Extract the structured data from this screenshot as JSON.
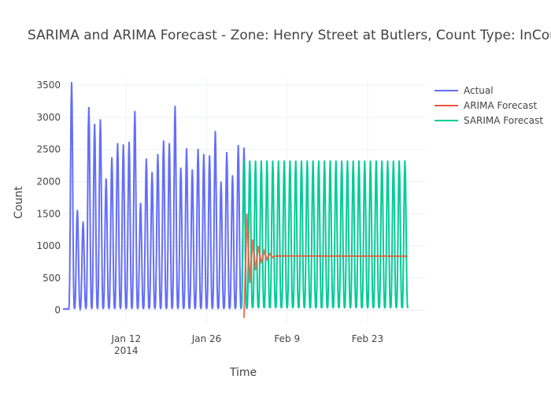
{
  "chart_data": {
    "type": "line",
    "title": "SARIMA and ARIMA Forecast - Zone: Henry Street at Butlers, Count Type: InCount, Pr",
    "xlabel": "Time",
    "ylabel": "Count",
    "xlim": [
      "2014-01-01",
      "2014-03-05"
    ],
    "ylim": [
      -200,
      3600
    ],
    "yticks": [
      0,
      500,
      1000,
      1500,
      2000,
      2500,
      3000,
      3500
    ],
    "xticks": [
      {
        "date": "2014-01-12",
        "label": "Jan 12",
        "sublabel": "2014"
      },
      {
        "date": "2014-01-26",
        "label": "Jan 26",
        "sublabel": ""
      },
      {
        "date": "2014-02-09",
        "label": "Feb 9",
        "sublabel": ""
      },
      {
        "date": "2014-02-23",
        "label": "Feb 23",
        "sublabel": ""
      }
    ],
    "grid": true,
    "legend_position": "top-right",
    "series": [
      {
        "name": "Actual",
        "color": "#636efa",
        "daily_peaks": [
          {
            "date": "2014-01-02",
            "peak": 3550
          },
          {
            "date": "2014-01-03",
            "peak": 1560
          },
          {
            "date": "2014-01-04",
            "peak": 1380
          },
          {
            "date": "2014-01-05",
            "peak": 3160
          },
          {
            "date": "2014-01-06",
            "peak": 2900
          },
          {
            "date": "2014-01-07",
            "peak": 2970
          },
          {
            "date": "2014-01-08",
            "peak": 2050
          },
          {
            "date": "2014-01-09",
            "peak": 2380
          },
          {
            "date": "2014-01-10",
            "peak": 2600
          },
          {
            "date": "2014-01-11",
            "peak": 2580
          },
          {
            "date": "2014-01-12",
            "peak": 2620
          },
          {
            "date": "2014-01-13",
            "peak": 3100
          },
          {
            "date": "2014-01-14",
            "peak": 1670
          },
          {
            "date": "2014-01-15",
            "peak": 2360
          },
          {
            "date": "2014-01-16",
            "peak": 2150
          },
          {
            "date": "2014-01-17",
            "peak": 2430
          },
          {
            "date": "2014-01-18",
            "peak": 2640
          },
          {
            "date": "2014-01-19",
            "peak": 2600
          },
          {
            "date": "2014-01-20",
            "peak": 3180
          },
          {
            "date": "2014-01-21",
            "peak": 2220
          },
          {
            "date": "2014-01-22",
            "peak": 2520
          },
          {
            "date": "2014-01-23",
            "peak": 2190
          },
          {
            "date": "2014-01-24",
            "peak": 2510
          },
          {
            "date": "2014-01-25",
            "peak": 2430
          },
          {
            "date": "2014-01-26",
            "peak": 2410
          },
          {
            "date": "2014-01-27",
            "peak": 2790
          },
          {
            "date": "2014-01-28",
            "peak": 2000
          },
          {
            "date": "2014-01-29",
            "peak": 2460
          },
          {
            "date": "2014-01-30",
            "peak": 2100
          },
          {
            "date": "2014-01-31",
            "peak": 2570
          },
          {
            "date": "2014-02-01",
            "peak": 2530
          }
        ]
      },
      {
        "name": "ARIMA Forecast",
        "color": "#ef553b",
        "points": [
          {
            "date": "2014-02-01T12:00",
            "y": -120
          },
          {
            "date": "2014-02-02",
            "y": 1500
          },
          {
            "date": "2014-02-02T12:00",
            "y": 420
          },
          {
            "date": "2014-02-03",
            "y": 1100
          },
          {
            "date": "2014-02-03T12:00",
            "y": 620
          },
          {
            "date": "2014-02-04",
            "y": 1000
          },
          {
            "date": "2014-02-04T12:00",
            "y": 730
          },
          {
            "date": "2014-02-05",
            "y": 920
          },
          {
            "date": "2014-02-05T12:00",
            "y": 790
          },
          {
            "date": "2014-02-06",
            "y": 880
          },
          {
            "date": "2014-02-06T12:00",
            "y": 820
          },
          {
            "date": "2014-02-07",
            "y": 845
          },
          {
            "date": "2014-03-02",
            "y": 840
          }
        ]
      },
      {
        "name": "SARIMA Forecast",
        "color": "#00cc96",
        "daily_peak": 2330,
        "daily_trough": 30,
        "start": "2014-02-01",
        "end": "2014-03-02"
      }
    ]
  }
}
